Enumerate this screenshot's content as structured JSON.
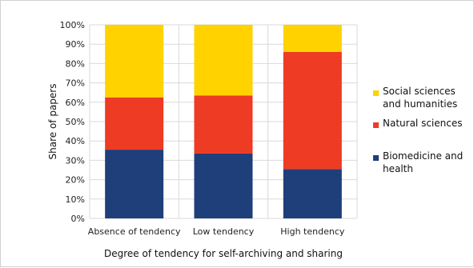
{
  "chart_data": {
    "type": "bar",
    "stacked": true,
    "percent": true,
    "categories": [
      "Absence of tendency",
      "Low tendency",
      "High tendency"
    ],
    "series": [
      {
        "name": "Biomedicine and health",
        "color": "#1f3f7a",
        "values": [
          35.5,
          33.5,
          25.5
        ]
      },
      {
        "name": "Natural sciences",
        "color": "#ee3b24",
        "values": [
          27,
          30,
          60.5
        ]
      },
      {
        "name": "Social sciences and humanities",
        "color": "#ffd200",
        "values": [
          37.5,
          36.5,
          14
        ]
      }
    ],
    "legend_order": [
      "Social sciences and humanities",
      "Natural sciences",
      "Biomedicine and health"
    ],
    "legend_lines": [
      [
        "Social sciences",
        "and humanities"
      ],
      [
        "Natural sciences"
      ],
      [
        "Biomedicine and",
        "health"
      ]
    ],
    "ylim": [
      0,
      100
    ],
    "yticks": [
      "0%",
      "10%",
      "20%",
      "30%",
      "40%",
      "50%",
      "60%",
      "70%",
      "80%",
      "90%",
      "100%"
    ],
    "ylabel": "Share of papers",
    "xlabel": "Degree of tendency for self-archiving and sharing",
    "grid": true,
    "legend_position": "right"
  }
}
